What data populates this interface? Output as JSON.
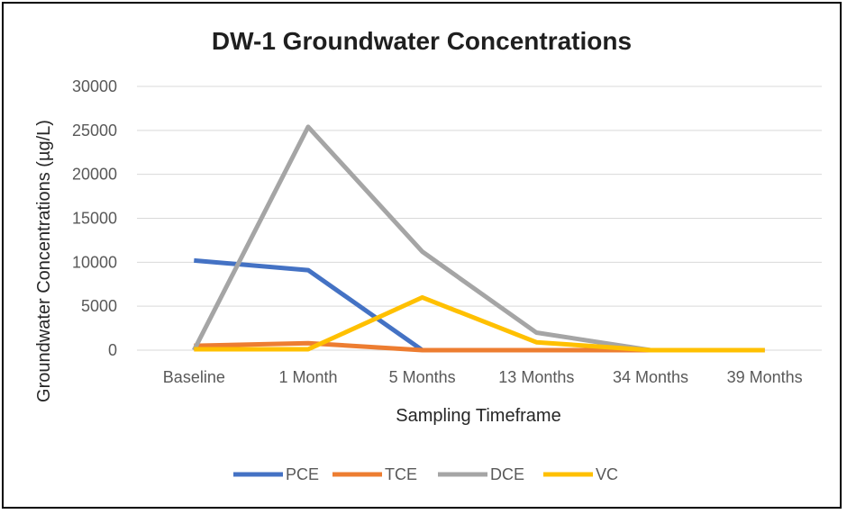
{
  "chart_data": {
    "type": "line",
    "title": "DW-1 Groundwater Concentrations",
    "xlabel": "Sampling Timeframe",
    "ylabel": "Groundwater Concentrations (µg/L)",
    "categories": [
      "Baseline",
      "1 Month",
      "5 Months",
      "13 Months",
      "34 Months",
      "39 Months"
    ],
    "ylim": [
      0,
      30000
    ],
    "yticks": [
      0,
      5000,
      10000,
      15000,
      20000,
      25000,
      30000
    ],
    "grid": true,
    "legend_position": "bottom",
    "series": [
      {
        "name": "PCE",
        "color": "#4472C4",
        "values": [
          10200,
          9100,
          0,
          null,
          null,
          null
        ]
      },
      {
        "name": "TCE",
        "color": "#ED7D31",
        "values": [
          500,
          800,
          0,
          0,
          0,
          0
        ]
      },
      {
        "name": "DCE",
        "color": "#A5A5A5",
        "values": [
          0,
          25400,
          11200,
          2000,
          0,
          0
        ]
      },
      {
        "name": "VC",
        "color": "#FFC000",
        "values": [
          100,
          100,
          6000,
          900,
          0,
          0
        ]
      }
    ]
  }
}
